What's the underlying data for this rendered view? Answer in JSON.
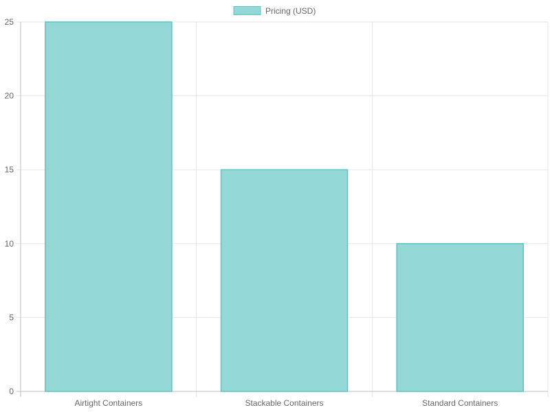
{
  "chart_data": {
    "type": "bar",
    "categories": [
      "Airtight Containers",
      "Stackable Containers",
      "Standard Containers"
    ],
    "series": [
      {
        "name": "Pricing (USD)",
        "values": [
          25,
          15,
          10
        ]
      }
    ],
    "ylim": [
      0,
      25
    ],
    "yticks": [
      0,
      5,
      10,
      15,
      20,
      25
    ],
    "grid": true,
    "legend": "top-center",
    "colors": {
      "bar_fill": "#93d8d6",
      "bar_stroke": "#5cc3c0",
      "grid": "#e6e6e6",
      "axis": "#bdbdbd",
      "text": "#666666"
    }
  }
}
